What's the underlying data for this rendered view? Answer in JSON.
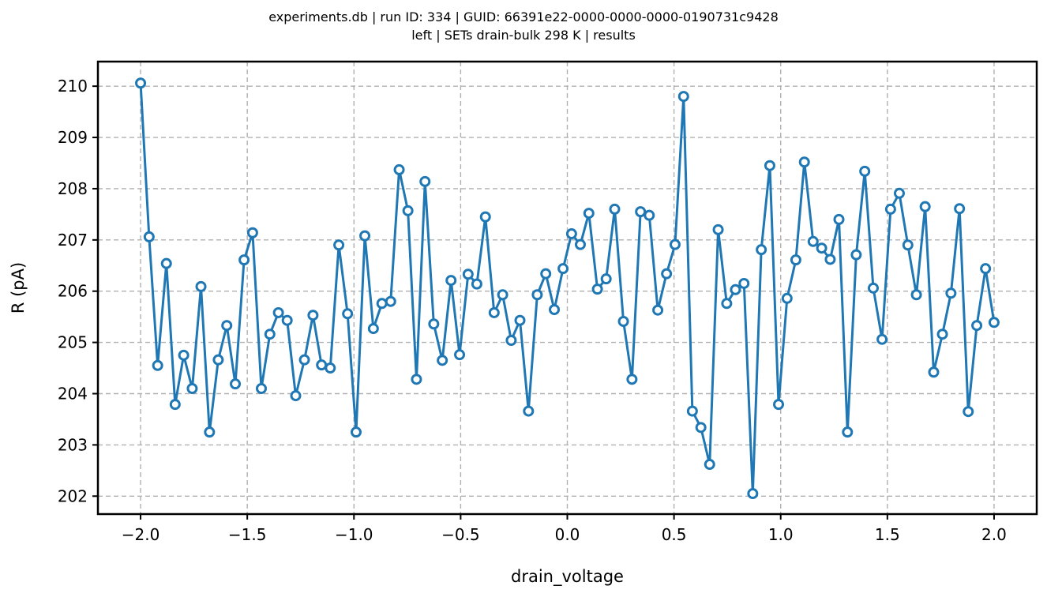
{
  "chart_data": {
    "type": "line",
    "title_lines": [
      "experiments.db | run ID: 334 | GUID: 66391e22-0000-0000-0000-0190731c9428",
      "left | SETs drain-bulk 298 K | results"
    ],
    "xlabel": "drain_voltage",
    "ylabel": "R (pA)",
    "xlim": [
      -2.2,
      2.2
    ],
    "ylim": [
      201.65,
      210.48
    ],
    "xticks": [
      -2.0,
      -1.5,
      -1.0,
      -0.5,
      0.0,
      0.5,
      1.0,
      1.5,
      2.0
    ],
    "xtick_labels": [
      "−2.0",
      "−1.5",
      "−1.0",
      "−0.5",
      "0.0",
      "0.5",
      "1.0",
      "1.5",
      "2.0"
    ],
    "yticks": [
      202,
      203,
      204,
      205,
      206,
      207,
      208,
      209,
      210
    ],
    "ytick_labels": [
      "202",
      "203",
      "204",
      "205",
      "206",
      "207",
      "208",
      "209",
      "210"
    ],
    "grid": true,
    "color": "#1f77b4",
    "marker": "hollow-circle",
    "x": [
      -2.0,
      -1.96,
      -1.92,
      -1.879,
      -1.838,
      -1.798,
      -1.758,
      -1.717,
      -1.677,
      -1.636,
      -1.596,
      -1.556,
      -1.515,
      -1.475,
      -1.434,
      -1.394,
      -1.354,
      -1.313,
      -1.273,
      -1.232,
      -1.192,
      -1.152,
      -1.111,
      -1.071,
      -1.03,
      -0.99,
      -0.949,
      -0.909,
      -0.869,
      -0.828,
      -0.788,
      -0.747,
      -0.707,
      -0.667,
      -0.626,
      -0.586,
      -0.545,
      -0.505,
      -0.465,
      -0.424,
      -0.384,
      -0.343,
      -0.303,
      -0.263,
      -0.222,
      -0.182,
      -0.141,
      -0.101,
      -0.061,
      -0.02,
      0.02,
      0.061,
      0.101,
      0.141,
      0.182,
      0.222,
      0.263,
      0.303,
      0.343,
      0.384,
      0.424,
      0.465,
      0.505,
      0.545,
      0.586,
      0.626,
      0.667,
      0.707,
      0.747,
      0.788,
      0.828,
      0.869,
      0.909,
      0.949,
      0.99,
      1.03,
      1.071,
      1.111,
      1.152,
      1.192,
      1.232,
      1.273,
      1.313,
      1.354,
      1.394,
      1.434,
      1.475,
      1.515,
      1.556,
      1.596,
      1.636,
      1.677,
      1.717,
      1.758,
      1.798,
      1.838,
      1.879,
      1.919,
      1.96,
      2.0
    ],
    "y": [
      210.06,
      207.06,
      204.55,
      206.54,
      203.79,
      204.75,
      204.1,
      206.09,
      203.25,
      204.66,
      205.33,
      204.19,
      206.61,
      207.14,
      204.1,
      205.16,
      205.58,
      205.43,
      203.96,
      204.66,
      205.53,
      204.56,
      204.5,
      206.9,
      205.56,
      203.25,
      207.08,
      205.27,
      205.76,
      205.8,
      208.37,
      207.57,
      204.28,
      208.14,
      205.36,
      204.65,
      206.21,
      204.76,
      206.33,
      206.14,
      207.45,
      205.58,
      205.93,
      205.04,
      205.43,
      203.66,
      205.93,
      206.34,
      205.64,
      206.44,
      207.12,
      206.91,
      207.52,
      206.04,
      206.24,
      207.6,
      205.41,
      204.28,
      207.55,
      207.48,
      205.63,
      206.34,
      206.91,
      209.8,
      203.66,
      203.34,
      202.62,
      207.2,
      205.76,
      206.03,
      206.15,
      202.05,
      206.81,
      208.45,
      203.79,
      205.86,
      206.61,
      208.52,
      206.97,
      206.84,
      206.62,
      207.4,
      203.25,
      206.71,
      208.34,
      206.06,
      205.06,
      207.6,
      207.91,
      206.9,
      205.93,
      207.65,
      204.42,
      205.16,
      205.96,
      207.61,
      203.65,
      205.33,
      206.44,
      205.39
    ]
  }
}
